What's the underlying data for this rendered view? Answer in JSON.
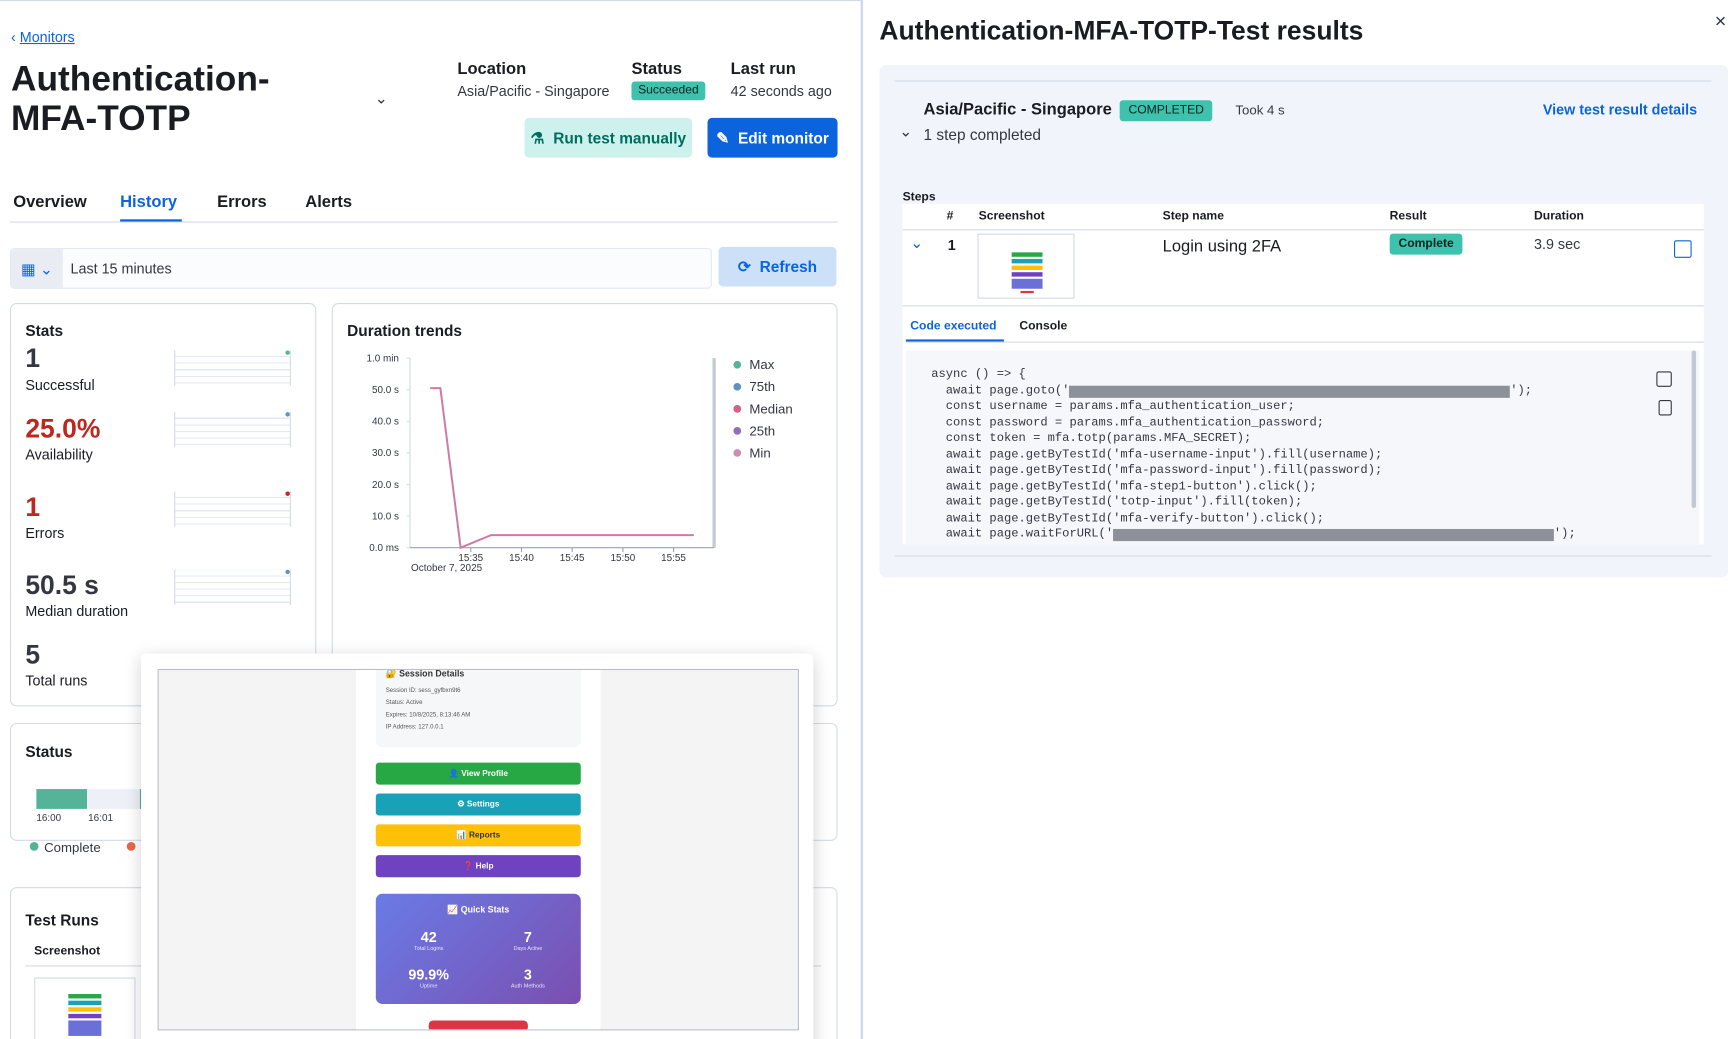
{
  "breadcrumb": "Monitors",
  "monitor": {
    "title": "Authentication-MFA-TOTP",
    "location_label": "Location",
    "location": "Asia/Pacific - Singapore",
    "status_label": "Status",
    "status": "Succeeded",
    "last_run_label": "Last run",
    "last_run": "42 seconds ago"
  },
  "buttons": {
    "run": "Run test manually",
    "edit": "Edit monitor",
    "refresh": "Refresh"
  },
  "tabs": [
    "Overview",
    "History",
    "Errors",
    "Alerts"
  ],
  "date_range": "Last 15 minutes",
  "stats": {
    "title": "Stats",
    "items": [
      {
        "value": "1",
        "label": "Successful",
        "color": "#343741"
      },
      {
        "value": "25.0%",
        "label": "Availability",
        "color": "#bd271e"
      },
      {
        "value": "1",
        "label": "Errors",
        "color": "#bd271e"
      },
      {
        "value": "50.5 s",
        "label": "Median duration",
        "color": "#343741"
      },
      {
        "value": "5",
        "label": "Total runs",
        "color": "#343741"
      }
    ]
  },
  "chart_data": {
    "type": "line",
    "title": "Duration trends",
    "x": [
      "15:31",
      "15:32",
      "15:34",
      "15:37",
      "15:40",
      "15:45",
      "15:50",
      "15:55",
      "15:57"
    ],
    "values": [
      50.5,
      50.5,
      0,
      4,
      4,
      4,
      4,
      4,
      4
    ],
    "color": "#d07aa3",
    "xlim": [
      "15:29",
      "15:59"
    ],
    "xticks": [
      "15:35",
      "15:40",
      "15:45",
      "15:50",
      "15:55"
    ],
    "date_label": "October 7, 2025",
    "ylim": [
      0,
      60
    ],
    "yticks": [
      {
        "value": 0,
        "label": "0.0 ms"
      },
      {
        "value": 10,
        "label": "10.0 s"
      },
      {
        "value": 20,
        "label": "20.0 s"
      },
      {
        "value": 30,
        "label": "30.0 s"
      },
      {
        "value": 40,
        "label": "40.0 s"
      },
      {
        "value": 50,
        "label": "50.0 s"
      },
      {
        "value": 60,
        "label": "1.0 min"
      }
    ],
    "grid": false,
    "legend": [
      {
        "name": "Max",
        "color": "#54b399"
      },
      {
        "name": "75th",
        "color": "#6092c0"
      },
      {
        "name": "Median",
        "color": "#d36086"
      },
      {
        "name": "25th",
        "color": "#9170b8"
      },
      {
        "name": "Min",
        "color": "#ca8eae"
      }
    ]
  },
  "status_panel": {
    "title": "Status",
    "times": [
      "16:00",
      "16:01"
    ],
    "legend": "Complete"
  },
  "test_runs": {
    "title": "Test Runs",
    "column": "Screenshot"
  },
  "popover": {
    "session_title": "🔐 Session Details",
    "session_lines": [
      "Session ID: sess_gyfbxn9t6",
      "Status: Active",
      "Expires: 10/8/2025, 8:13:46 AM",
      "IP Address: 127.0.0.1"
    ],
    "buttons": [
      "👤 View Profile",
      "⚙ Settings",
      "📊 Reports",
      "❓ Help"
    ],
    "stats_title": "📈 Quick Stats",
    "stats": [
      {
        "value": "42",
        "label": "Total Logins"
      },
      {
        "value": "7",
        "label": "Days Active"
      },
      {
        "value": "99.9%",
        "label": "Uptime"
      },
      {
        "value": "3",
        "label": "Auth Methods"
      }
    ]
  },
  "flyout": {
    "title": "Authentication-MFA-TOTP-Test results",
    "location": "Asia/Pacific - Singapore",
    "badge": "COMPLETED",
    "took": "Took 4 s",
    "details_link": "View test result details",
    "steps_summary": "1 step completed",
    "steps_label": "Steps",
    "headers": [
      "#",
      "Screenshot",
      "Step name",
      "Result",
      "Duration"
    ],
    "row": {
      "index": "1",
      "name": "Login using 2FA",
      "result": "Complete",
      "duration": "3.9 sec"
    },
    "code_tabs": [
      "Code executed",
      "Console"
    ],
    "code": [
      [
        "async () => {"
      ],
      [
        "  await page.goto('",
        "');"
      ],
      [
        "  const username = params.mfa_authentication_user;"
      ],
      [
        "  const password = params.mfa_authentication_password;"
      ],
      [
        "  const token = mfa.totp(params.MFA_SECRET);"
      ],
      [
        "  await page.getByTestId('mfa-username-input').fill(username);"
      ],
      [
        "  await page.getByTestId('mfa-password-input').fill(password);"
      ],
      [
        "  await page.getByTestId('mfa-step1-button').click();"
      ],
      [
        "  await page.getByTestId('totp-input').fill(token);"
      ],
      [
        "  await page.getByTestId('mfa-verify-button').click();"
      ],
      [
        "  await page.waitForURL('",
        "');"
      ]
    ]
  }
}
